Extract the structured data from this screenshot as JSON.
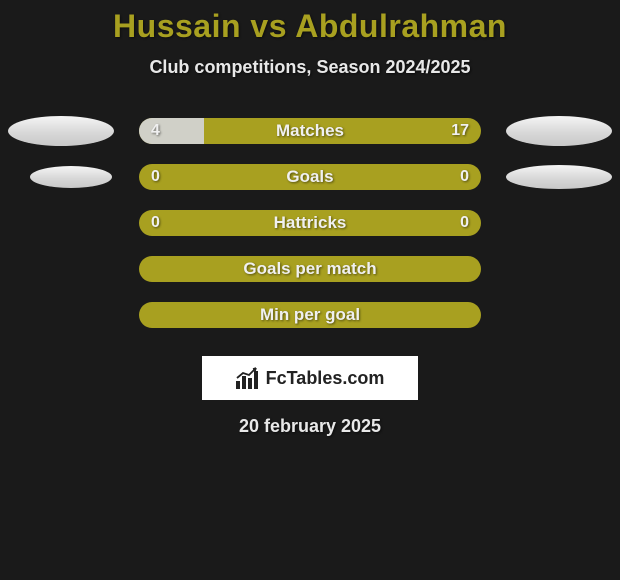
{
  "title": "Hussain vs Abdulrahman",
  "subtitle": "Club competitions, Season 2024/2025",
  "date": "20 february 2025",
  "logo_text": "FcTables.com",
  "colors": {
    "background": "#1a1a1a",
    "accent": "#a8a020",
    "bar_fill": "#d0d0c8",
    "text_light": "#e8e8e8",
    "avatar_bg": "#e0e0e0",
    "logo_bg": "#ffffff"
  },
  "stats": [
    {
      "label": "Matches",
      "left_value": "4",
      "right_value": "17",
      "left_pct": 19,
      "right_pct": 0,
      "show_left_avatar": true,
      "show_right_avatar": true
    },
    {
      "label": "Goals",
      "left_value": "0",
      "right_value": "0",
      "left_pct": 0,
      "right_pct": 0,
      "show_left_avatar": true,
      "show_right_avatar": true
    },
    {
      "label": "Hattricks",
      "left_value": "0",
      "right_value": "0",
      "left_pct": 0,
      "right_pct": 0,
      "show_left_avatar": false,
      "show_right_avatar": false
    },
    {
      "label": "Goals per match",
      "left_value": "",
      "right_value": "",
      "left_pct": 0,
      "right_pct": 0,
      "show_left_avatar": false,
      "show_right_avatar": false
    },
    {
      "label": "Min per goal",
      "left_value": "",
      "right_value": "",
      "left_pct": 0,
      "right_pct": 0,
      "show_left_avatar": false,
      "show_right_avatar": false
    }
  ]
}
